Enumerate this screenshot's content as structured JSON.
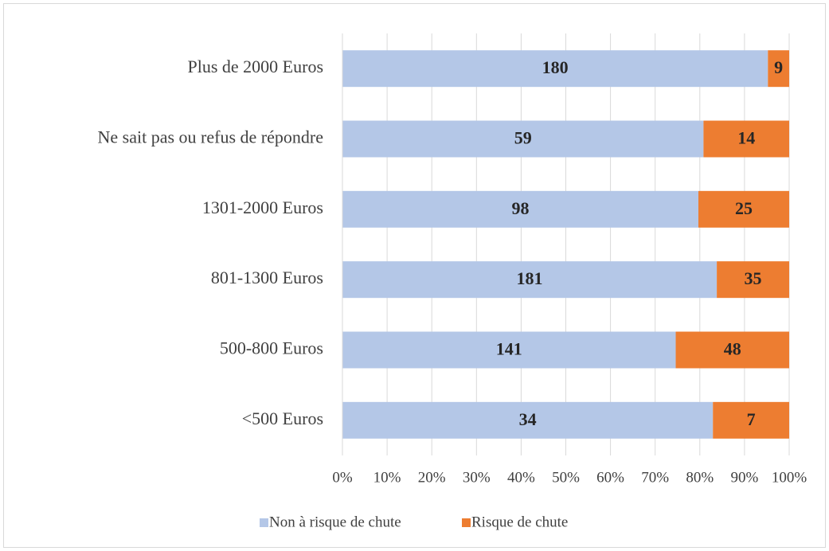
{
  "chart_data": {
    "type": "bar",
    "orientation": "horizontal",
    "stacking": "percent",
    "categories": [
      "Plus de 2000 Euros",
      "Ne sait pas ou refus de répondre",
      "1301-2000 Euros",
      "801-1300 Euros",
      "500-800 Euros",
      "<500 Euros"
    ],
    "series": [
      {
        "name": "Non à risque de chute",
        "color": "#b4c7e7",
        "values": [
          180,
          59,
          98,
          181,
          141,
          34
        ]
      },
      {
        "name": "Risque de chute",
        "color": "#ed7d31",
        "values": [
          9,
          14,
          25,
          35,
          48,
          7
        ]
      }
    ],
    "xlim": [
      0,
      100
    ],
    "xticks": [
      {
        "value": 0,
        "label": "0%"
      },
      {
        "value": 10,
        "label": "10%"
      },
      {
        "value": 20,
        "label": "20%"
      },
      {
        "value": 30,
        "label": "30%"
      },
      {
        "value": 40,
        "label": "40%"
      },
      {
        "value": 50,
        "label": "50%"
      },
      {
        "value": 60,
        "label": "60%"
      },
      {
        "value": 70,
        "label": "70%"
      },
      {
        "value": 80,
        "label": "80%"
      },
      {
        "value": 90,
        "label": "90%"
      },
      {
        "value": 100,
        "label": "100%"
      }
    ],
    "grid": true,
    "legend": "bottom"
  }
}
